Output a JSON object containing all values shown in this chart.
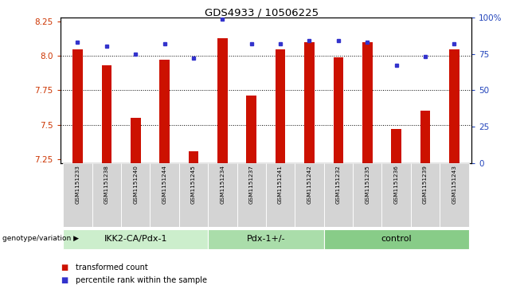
{
  "title": "GDS4933 / 10506225",
  "samples": [
    "GSM1151233",
    "GSM1151238",
    "GSM1151240",
    "GSM1151244",
    "GSM1151245",
    "GSM1151234",
    "GSM1151237",
    "GSM1151241",
    "GSM1151242",
    "GSM1151232",
    "GSM1151235",
    "GSM1151236",
    "GSM1151239",
    "GSM1151243"
  ],
  "red_values": [
    8.05,
    7.93,
    7.55,
    7.97,
    7.31,
    8.13,
    7.71,
    8.05,
    8.1,
    7.99,
    8.1,
    7.47,
    7.6,
    8.05
  ],
  "blue_values": [
    83,
    80,
    75,
    82,
    72,
    99,
    82,
    82,
    84,
    84,
    83,
    67,
    73,
    82
  ],
  "groups": [
    {
      "label": "IKK2-CA/Pdx-1",
      "start": 0,
      "end": 5
    },
    {
      "label": "Pdx-1+/-",
      "start": 5,
      "end": 9
    },
    {
      "label": "control",
      "start": 9,
      "end": 14
    }
  ],
  "ylim_left": [
    7.22,
    8.28
  ],
  "ylim_right": [
    0,
    100
  ],
  "yticks_left": [
    7.25,
    7.5,
    7.75,
    8.0,
    8.25
  ],
  "yticks_right": [
    0,
    25,
    50,
    75,
    100
  ],
  "ytick_labels_right": [
    "0",
    "25",
    "50",
    "75",
    "100%"
  ],
  "grid_lines": [
    8.0,
    7.75,
    7.5
  ],
  "bar_color": "#cc1100",
  "dot_color": "#3333cc",
  "bar_width": 0.35,
  "group_colors": [
    "#cceecc",
    "#aaddaa",
    "#88cc88"
  ],
  "legend_items": [
    {
      "color": "#cc1100",
      "label": "transformed count"
    },
    {
      "color": "#3333cc",
      "label": "percentile rank within the sample"
    }
  ],
  "genotype_label": "genotype/variation"
}
